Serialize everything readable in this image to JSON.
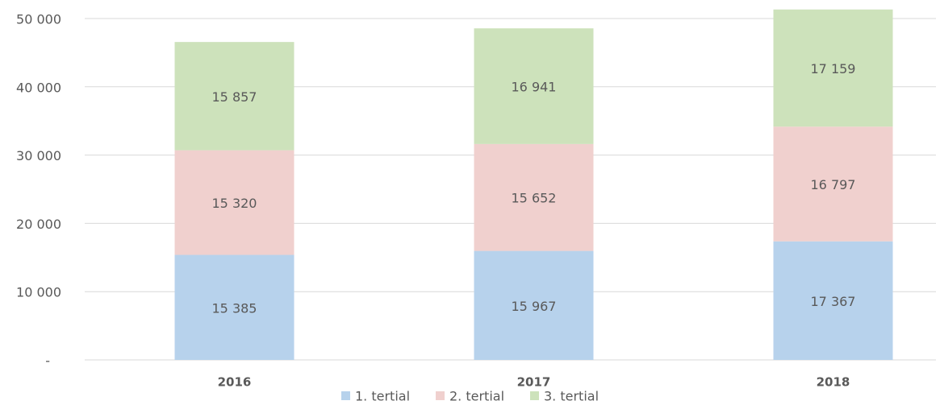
{
  "chart_data": {
    "type": "stacked_bar",
    "categories": [
      "2016",
      "2017",
      "2018"
    ],
    "series": [
      {
        "name": "1. tertial",
        "color": "#b7d2ec",
        "values": [
          15385,
          15967,
          17367
        ],
        "value_labels": [
          "15 385",
          "15 967",
          "17 367"
        ]
      },
      {
        "name": "2. tertial",
        "color": "#f0d0ce",
        "values": [
          15320,
          15652,
          16797
        ],
        "value_labels": [
          "15 320",
          "15 652",
          "16 797"
        ]
      },
      {
        "name": "3. tertial",
        "color": "#cde2bb",
        "values": [
          15857,
          16941,
          17159
        ],
        "value_labels": [
          "15 857",
          "16 941",
          "17 159"
        ]
      }
    ],
    "ylim": [
      0,
      50000
    ],
    "yticks": [
      {
        "value": 0,
        "label": "-"
      },
      {
        "value": 10000,
        "label": "10 000"
      },
      {
        "value": 20000,
        "label": "20 000"
      },
      {
        "value": 30000,
        "label": "30 000"
      },
      {
        "value": 40000,
        "label": "40 000"
      },
      {
        "value": 50000,
        "label": "50 000"
      }
    ],
    "grid": true
  }
}
